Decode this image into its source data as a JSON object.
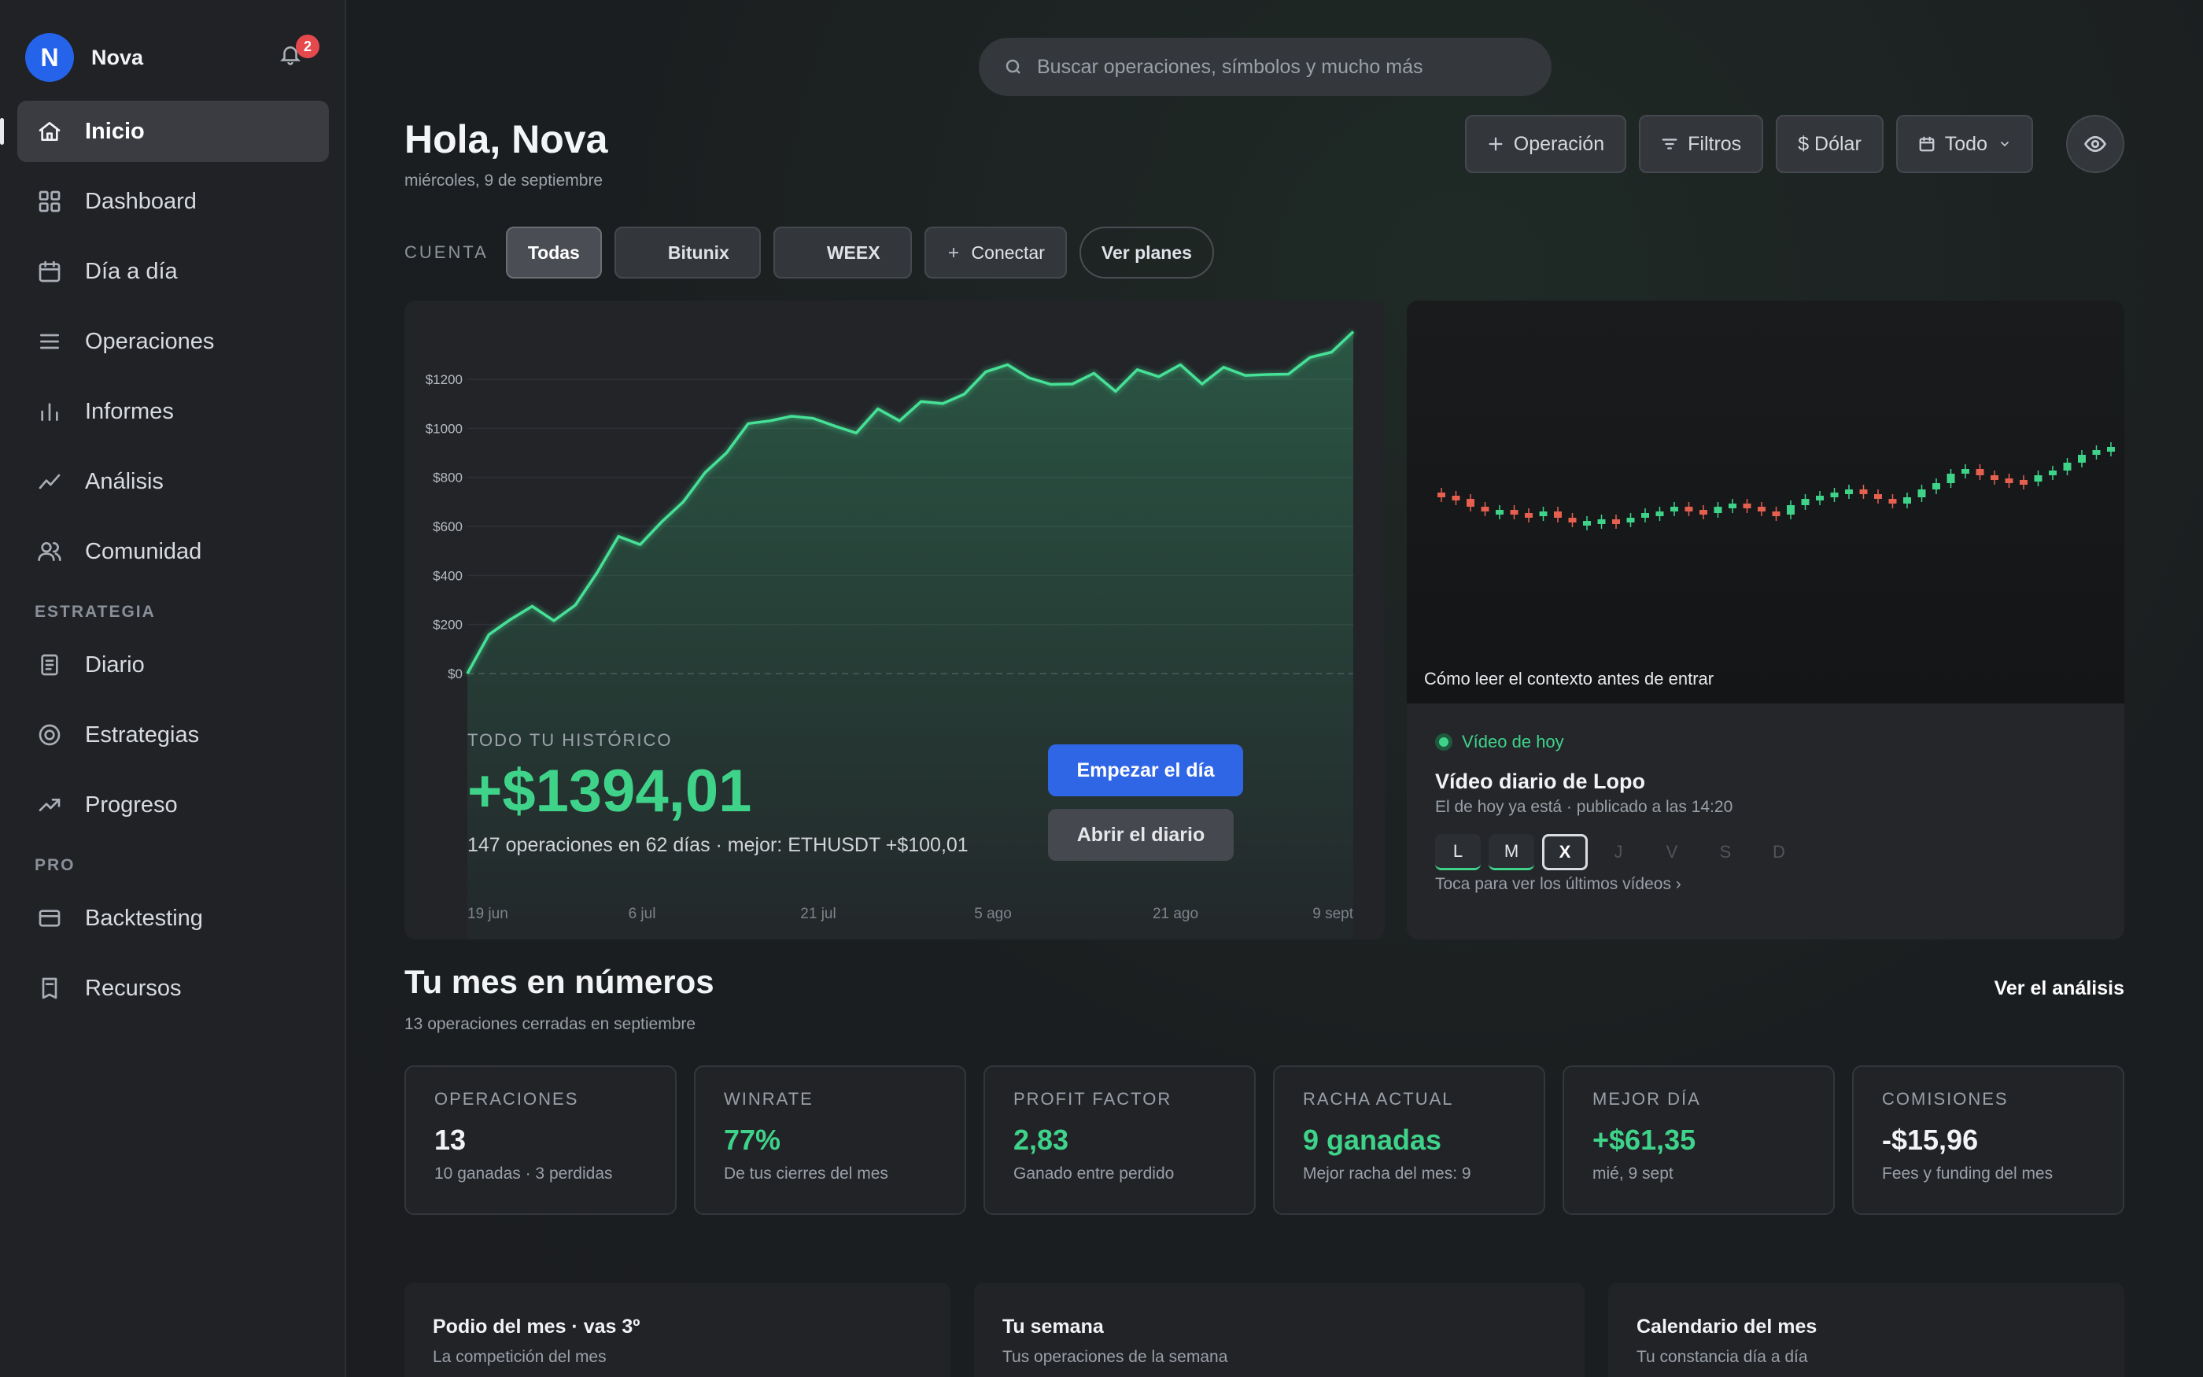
{
  "user": {
    "initial": "N",
    "name": "Nova",
    "notifications": "2"
  },
  "sidebar": {
    "main": [
      {
        "label": "Inicio",
        "icon": "home-icon",
        "active": true
      },
      {
        "label": "Dashboard",
        "icon": "grid-icon"
      },
      {
        "label": "Día a día",
        "icon": "calendar-icon"
      },
      {
        "label": "Operaciones",
        "icon": "list-icon"
      },
      {
        "label": "Informes",
        "icon": "bar-chart-icon"
      },
      {
        "label": "Análisis",
        "icon": "trend-icon"
      },
      {
        "label": "Comunidad",
        "icon": "users-icon"
      }
    ],
    "section_strategy": "ESTRATEGIA",
    "strategy": [
      {
        "label": "Diario",
        "icon": "journal-icon"
      },
      {
        "label": "Estrategias",
        "icon": "target-icon"
      },
      {
        "label": "Progreso",
        "icon": "progress-icon"
      }
    ],
    "section_pro": "PRO",
    "pro": [
      {
        "label": "Backtesting",
        "icon": "card-icon"
      },
      {
        "label": "Recursos",
        "icon": "book-icon"
      }
    ]
  },
  "search": {
    "placeholder": "Buscar operaciones, símbolos y mucho más"
  },
  "header": {
    "greeting": "Hola, Nova",
    "date": "miércoles, 9 de septiembre"
  },
  "toolbar": {
    "operation": "Operación",
    "filters": "Filtros",
    "currency": "$ Dólar",
    "period": "Todo"
  },
  "accounts": {
    "label": "CUENTA",
    "items": [
      "Todas",
      "Bitunix",
      "WEEX"
    ],
    "connect": "Conectar",
    "plans": "Ver planes"
  },
  "history": {
    "label": "TODO TU HISTÓRICO",
    "value": "+$1394,01",
    "summary": "147 operaciones en 62 días · mejor: ETHUSDT +$100,01",
    "start_button": "Empezar el día",
    "journal_button": "Abrir el diario"
  },
  "chart_data": {
    "type": "area",
    "x_ticks": [
      "19 jun",
      "6 jul",
      "21 jul",
      "5 ago",
      "21 ago",
      "9 sept"
    ],
    "y_ticks": [
      "$0",
      "$200",
      "$400",
      "$600",
      "$800",
      "$1000",
      "$1200"
    ],
    "ylim": [
      0,
      1394
    ],
    "grid": true,
    "y": [
      0,
      140,
      240,
      255,
      235,
      260,
      430,
      540,
      545,
      600,
      720,
      800,
      920,
      1000,
      1050,
      1030,
      1060,
      990,
      1000,
      1060,
      1050,
      1090,
      1120,
      1120,
      1250,
      1240,
      1225,
      1160,
      1200,
      1205,
      1170,
      1220,
      1230,
      1240,
      1200,
      1230,
      1235,
      1200,
      1240,
      1270,
      1330,
      1394
    ]
  },
  "video": {
    "caption": "Cómo leer el contexto antes de entrar",
    "tag": "Vídeo de hoy",
    "title": "Vídeo diario de Lopo",
    "meta": "El de hoy ya está · publicado a las 14:20",
    "days": [
      {
        "label": "L",
        "state": "done"
      },
      {
        "label": "M",
        "state": "done"
      },
      {
        "label": "X",
        "state": "today"
      },
      {
        "label": "J",
        "state": "future"
      },
      {
        "label": "V",
        "state": "future"
      },
      {
        "label": "S",
        "state": "future"
      },
      {
        "label": "D",
        "state": "future"
      }
    ],
    "link": "Toca para ver los últimos vídeos ›",
    "colors": {
      "up": "#3fd38a",
      "down": "#e5604f"
    }
  },
  "month": {
    "title": "Tu mes en números",
    "subtitle": "13 operaciones cerradas en septiembre",
    "link": "Ver el análisis",
    "stats": [
      {
        "label": "OPERACIONES",
        "value": "13",
        "sub": "10 ganadas · 3 perdidas",
        "green": false
      },
      {
        "label": "WINRATE",
        "value": "77%",
        "sub": "De tus cierres del mes",
        "green": true
      },
      {
        "label": "PROFIT FACTOR",
        "value": "2,83",
        "sub": "Ganado entre perdido",
        "green": true
      },
      {
        "label": "RACHA ACTUAL",
        "value": "9 ganadas",
        "sub": "Mejor racha del mes: 9",
        "green": true
      },
      {
        "label": "MEJOR DÍA",
        "value": "+$61,35",
        "sub": "mié, 9 sept",
        "green": true
      },
      {
        "label": "COMISIONES",
        "value": "-$15,96",
        "sub": "Fees y funding del mes",
        "green": false
      }
    ]
  },
  "bottom": [
    {
      "title": "Podio del mes · vas 3º",
      "sub": "La competición del mes"
    },
    {
      "title": "Tu semana",
      "sub": "Tus operaciones de la semana"
    },
    {
      "title": "Calendario del mes",
      "sub": "Tu constancia día a día"
    }
  ],
  "colors": {
    "accent": "#2f66e6",
    "positive": "#3fd38a",
    "negative": "#e5604f",
    "badge": "#e5484d"
  }
}
